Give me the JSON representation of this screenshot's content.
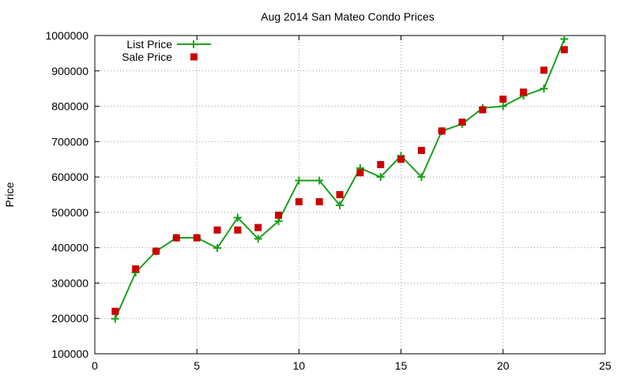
{
  "chart_data": {
    "type": "line",
    "title": "Aug 2014 San Mateo Condo Prices",
    "xlabel": "",
    "ylabel": "Price",
    "xlim": [
      0,
      25
    ],
    "ylim": [
      100000,
      1000000
    ],
    "xticks": [
      0,
      5,
      10,
      15,
      20,
      25
    ],
    "yticks": [
      100000,
      200000,
      300000,
      400000,
      500000,
      600000,
      700000,
      800000,
      900000,
      1000000
    ],
    "xtick_labels": [
      "0",
      "5",
      "10",
      "15",
      "20",
      "25"
    ],
    "ytick_labels": [
      "100000",
      "200000",
      "300000",
      "400000",
      "500000",
      "600000",
      "700000",
      "800000",
      "900000",
      "1000000"
    ],
    "grid": true,
    "legend_position": "top-left",
    "series": [
      {
        "name": "List Price",
        "style": "line-with-plus-markers",
        "color": "#1aa01a",
        "x": [
          1,
          2,
          3,
          4,
          5,
          6,
          7,
          8,
          9,
          10,
          11,
          12,
          13,
          14,
          15,
          16,
          17,
          18,
          19,
          20,
          21,
          22,
          23
        ],
        "y": [
          199000,
          330000,
          390000,
          428000,
          428000,
          399000,
          485000,
          425000,
          475000,
          590000,
          590000,
          520000,
          625000,
          600000,
          660000,
          600000,
          730000,
          750000,
          795000,
          800000,
          830000,
          850000,
          990000
        ]
      },
      {
        "name": "Sale Price",
        "style": "square-markers",
        "color": "#cc0000",
        "x": [
          1,
          2,
          3,
          4,
          5,
          6,
          7,
          8,
          9,
          10,
          11,
          12,
          13,
          14,
          15,
          16,
          17,
          18,
          19,
          20,
          21,
          22,
          23
        ],
        "y": [
          220000,
          340000,
          390000,
          428000,
          428000,
          450000,
          450000,
          457000,
          492000,
          530000,
          530000,
          550000,
          612000,
          635000,
          650000,
          675000,
          730000,
          755000,
          790000,
          820000,
          840000,
          902000,
          960000
        ]
      }
    ]
  }
}
